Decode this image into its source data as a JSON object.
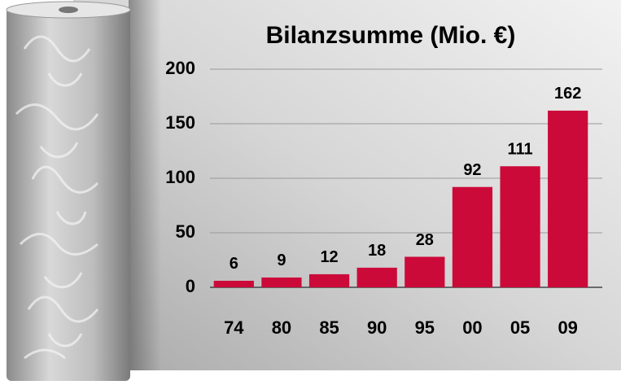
{
  "chart_data": {
    "type": "bar",
    "title": "Bilanzsumme (Mio. €)",
    "categories": [
      "74",
      "80",
      "85",
      "90",
      "95",
      "00",
      "05",
      "09"
    ],
    "values": [
      6,
      9,
      12,
      18,
      28,
      92,
      111,
      162
    ],
    "color": "#cc0a3a",
    "ylim": [
      0,
      200
    ],
    "yticks": [
      0,
      50,
      100,
      150,
      200
    ],
    "grid": true
  }
}
